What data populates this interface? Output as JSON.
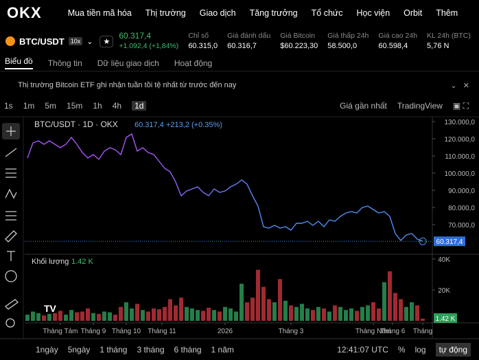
{
  "nav": {
    "logo": "OKX",
    "items": [
      "Mua tiền mã hóa",
      "Thị trường",
      "Giao dịch",
      "Tăng trưởng",
      "Tổ chức",
      "Học viện",
      "Orbit",
      "Thêm"
    ]
  },
  "ticker": {
    "pair": "BTC/USDT",
    "leverage": "10x",
    "price": "60.317,4",
    "change": "+1.092,4 (+1,84%)",
    "stats": [
      {
        "label": "Chỉ số",
        "value": "60.315,0"
      },
      {
        "label": "Giá đánh dấu",
        "value": "60.316,7"
      },
      {
        "label": "Giá Bitcoin",
        "value": "$60.223,30"
      },
      {
        "label": "Giá thấp 24h",
        "value": "58.500,0"
      },
      {
        "label": "Giá cao 24h",
        "value": "60.598,4"
      },
      {
        "label": "KL 24h (BTC)",
        "value": "5,76 N"
      }
    ]
  },
  "tabs": [
    "Biểu đồ",
    "Thông tin",
    "Dữ liệu giao dịch",
    "Hoạt động"
  ],
  "banner": "Thị trường Bitcoin ETF ghi nhận tuần tồi tệ nhất từ trước đến nay",
  "toolbar": {
    "timeframes": [
      "1s",
      "1m",
      "5m",
      "15m",
      "1h",
      "4h",
      "1d"
    ],
    "price_source": "Giá gần nhất",
    "chart_source": "TradingView"
  },
  "chart_data": {
    "type": "line",
    "legend_title": "BTC/USDT · 1D · OKX",
    "legend_price": "60.317,4",
    "legend_change": "+213,2 (+0.35%)",
    "series": [
      {
        "name": "BTC/USDT",
        "colors": [
          "#a855f7",
          "#4f8ff7"
        ],
        "values": [
          108800,
          117600,
          118800,
          116800,
          118800,
          116800,
          114800,
          116800,
          120800,
          116800,
          112000,
          108800,
          110800,
          108000,
          112800,
          114800,
          113600,
          110800,
          120800,
          122800,
          112800,
          114800,
          112000,
          110800,
          106800,
          102800,
          100800,
          94800,
          86800,
          89600,
          90800,
          92000,
          88800,
          86800,
          90800,
          88800,
          89600,
          92000,
          93600,
          96000,
          93600,
          86800,
          80800,
          68800,
          68000,
          69600,
          68000,
          68800,
          66800,
          70800,
          70800,
          72000,
          69600,
          72000,
          68800,
          72800,
          72000,
          74800,
          76800,
          77600,
          76800,
          80000,
          80800,
          78800,
          76800,
          77600,
          74800,
          64800,
          60800,
          64000,
          64800,
          61600,
          60317.4
        ]
      }
    ],
    "xlim": [
      -0.5,
      73.75
    ],
    "ylim": [
      53600,
      132000
    ],
    "grid": false,
    "yticks": [
      {
        "value": 130000,
        "label": "130.000,0"
      },
      {
        "value": 120000,
        "label": "120.000,0"
      },
      {
        "value": 110000,
        "label": "110.000,0"
      },
      {
        "value": 100000,
        "label": "100.000,0"
      },
      {
        "value": 90000,
        "label": "90.000,0"
      },
      {
        "value": 80000,
        "label": "80.000,0"
      },
      {
        "value": 70000,
        "label": "70.000,0"
      }
    ],
    "xticks": [
      {
        "value": 6,
        "label": "Tháng Tám"
      },
      {
        "value": 12,
        "label": "Tháng 9"
      },
      {
        "value": 18,
        "label": "Tháng 10"
      },
      {
        "value": 24.5,
        "label": "Tháng 11"
      },
      {
        "value": 36,
        "label": "2026"
      },
      {
        "value": 48,
        "label": "Tháng 3"
      },
      {
        "value": 63,
        "label": "Tháng Năm"
      },
      {
        "value": 66.5,
        "label": "Tháng 6"
      },
      {
        "value": 72,
        "label": "Tháng"
      }
    ],
    "volume": {
      "title": "Khối lượng",
      "last_label": "1.42 K",
      "up_color": "#2e9e5b",
      "down_color": "#c9343f",
      "ylim": [
        0,
        42200
      ],
      "yticks": [
        {
          "value": 40000,
          "label": "40K"
        },
        {
          "value": 20000,
          "label": "20K"
        }
      ],
      "values": [
        4000,
        6000,
        5000,
        3500,
        4500,
        5000,
        6500,
        4000,
        7000,
        5500,
        6000,
        8000,
        5000,
        4500,
        6000,
        5500,
        4000,
        9000,
        12000,
        8000,
        11000,
        7000,
        6000,
        8000,
        7500,
        9000,
        14000,
        10000,
        15000,
        9000,
        8000,
        7000,
        6500,
        8500,
        7000,
        6000,
        9000,
        8000,
        6000,
        24000,
        12000,
        15000,
        33000,
        22000,
        14000,
        12000,
        27000,
        13000,
        10000,
        9000,
        11000,
        8000,
        7000,
        9000,
        8000,
        6000,
        10000,
        9000,
        7000,
        8000,
        6500,
        9000,
        10000,
        12000,
        8000,
        25000,
        32000,
        18000,
        14000,
        9000,
        12000,
        10000,
        1420
      ]
    }
  },
  "bottom": {
    "ranges": [
      "1ngày",
      "5ngày",
      "1 tháng",
      "3 tháng",
      "6 tháng",
      "1 năm"
    ],
    "time": "12:41:07 UTC",
    "percent": "%",
    "log": "log",
    "auto": "tự động"
  }
}
